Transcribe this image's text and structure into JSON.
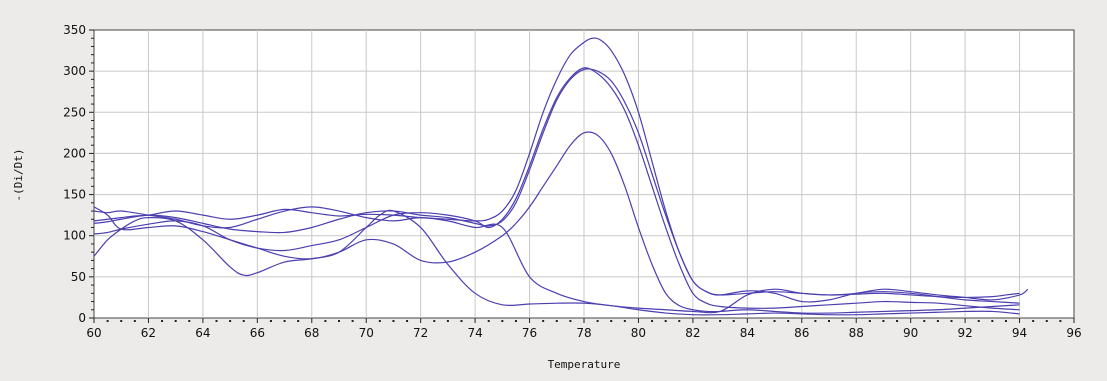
{
  "chart_data": {
    "type": "line",
    "title": "",
    "xlabel": "Temperature",
    "ylabel": "-(Di/Dt)",
    "xlim": [
      60,
      96
    ],
    "ylim": [
      0,
      350
    ],
    "xticks": [
      60,
      62,
      64,
      66,
      68,
      70,
      72,
      74,
      76,
      78,
      80,
      82,
      84,
      86,
      88,
      90,
      92,
      94,
      96
    ],
    "yticks": [
      0,
      50,
      100,
      150,
      200,
      250,
      300,
      350
    ],
    "grid": true,
    "legend": "none",
    "line_color": "#4b3fb0",
    "series": [
      {
        "x": [
          60.0,
          60.5,
          61.0,
          61.5,
          62.0,
          63.0,
          64.0,
          65.0,
          66.0,
          67.0,
          68.0,
          69.0,
          70.0,
          71.0,
          72.0,
          73.0,
          74.0,
          74.5,
          75.0,
          75.5,
          76.0,
          76.5,
          77.0,
          77.5,
          78.0,
          78.3,
          78.6,
          79.0,
          79.5,
          80.0,
          80.5,
          81.0,
          81.5,
          82.0,
          82.5,
          83.0,
          84.0,
          85.0,
          86.0,
          87.0,
          88.0,
          89.0,
          90.0,
          91.0,
          92.0,
          93.0,
          93.5,
          94.0
        ],
        "y": [
          118,
          120,
          122,
          124,
          125,
          130,
          125,
          120,
          125,
          132,
          128,
          124,
          126,
          125,
          122,
          120,
          118,
          120,
          130,
          155,
          200,
          250,
          290,
          320,
          335,
          340,
          338,
          325,
          295,
          250,
          190,
          130,
          80,
          45,
          32,
          28,
          30,
          32,
          30,
          28,
          29,
          30,
          28,
          26,
          25,
          26,
          28,
          30
        ]
      },
      {
        "x": [
          60.0,
          60.5,
          61.0,
          62.0,
          63.0,
          64.0,
          65.0,
          66.0,
          67.0,
          68.0,
          69.0,
          70.0,
          71.0,
          72.0,
          73.0,
          74.0,
          74.5,
          75.0,
          75.5,
          76.0,
          76.5,
          77.0,
          77.5,
          78.0,
          78.5,
          79.0,
          79.5,
          80.0,
          80.5,
          81.0,
          81.5,
          82.0,
          82.5,
          83.0,
          84.0,
          85.0,
          86.0,
          87.0,
          88.0,
          89.0,
          90.0,
          91.0,
          92.0,
          93.0,
          94.0
        ],
        "y": [
          115,
          117,
          120,
          125,
          122,
          115,
          108,
          105,
          104,
          110,
          120,
          128,
          130,
          125,
          122,
          115,
          112,
          118,
          140,
          180,
          225,
          265,
          290,
          302,
          300,
          288,
          262,
          225,
          175,
          125,
          80,
          45,
          32,
          28,
          33,
          30,
          20,
          22,
          30,
          32,
          30,
          26,
          22,
          20,
          18
        ]
      },
      {
        "x": [
          60.0,
          60.5,
          61.0,
          62.0,
          63.0,
          64.0,
          65.0,
          66.0,
          67.0,
          68.0,
          69.0,
          70.0,
          71.0,
          72.0,
          73.0,
          74.0,
          74.5,
          75.0,
          75.5,
          76.0,
          76.5,
          77.0,
          77.5,
          78.0,
          78.5,
          79.0,
          79.5,
          80.0,
          80.5,
          81.0,
          81.5,
          82.0,
          82.5,
          83.0,
          84.0,
          85.0,
          86.0,
          87.0,
          88.0,
          89.0,
          90.0,
          91.0,
          92.0,
          93.0,
          94.0
        ],
        "y": [
          102,
          104,
          108,
          114,
          118,
          112,
          95,
          85,
          82,
          88,
          95,
          110,
          125,
          128,
          125,
          118,
          110,
          120,
          145,
          185,
          230,
          268,
          292,
          304,
          297,
          280,
          252,
          210,
          160,
          110,
          65,
          30,
          18,
          14,
          12,
          12,
          14,
          16,
          18,
          20,
          19,
          18,
          15,
          12,
          10
        ]
      },
      {
        "x": [
          60.0,
          60.5,
          61.0,
          62.0,
          63.0,
          64.0,
          65.0,
          66.0,
          67.0,
          68.0,
          69.0,
          70.0,
          71.0,
          72.0,
          73.0,
          74.0,
          75.0,
          75.5,
          76.0,
          76.5,
          77.0,
          77.5,
          78.0,
          78.5,
          79.0,
          79.5,
          80.0,
          80.5,
          81.0,
          81.5,
          82.0,
          82.5,
          83.0,
          84.0,
          85.0,
          86.0,
          87.0,
          88.0,
          89.0,
          90.0,
          91.0,
          92.0,
          93.0,
          94.0
        ],
        "y": [
          135,
          125,
          108,
          110,
          112,
          105,
          95,
          85,
          75,
          72,
          80,
          95,
          90,
          70,
          68,
          80,
          100,
          115,
          135,
          160,
          185,
          210,
          225,
          222,
          200,
          160,
          110,
          65,
          30,
          15,
          10,
          8,
          8,
          10,
          8,
          6,
          6,
          7,
          8,
          9,
          10,
          12,
          14,
          16
        ]
      },
      {
        "x": [
          60.0,
          60.5,
          61.0,
          61.5,
          62.0,
          63.0,
          64.0,
          65.0,
          65.5,
          66.0,
          67.0,
          68.0,
          69.0,
          70.0,
          70.5,
          71.0,
          72.0,
          73.0,
          74.0,
          75.0,
          76.0,
          77.0,
          78.0,
          79.0,
          80.0,
          81.0,
          82.0,
          83.0,
          84.0,
          85.0,
          86.0,
          87.0,
          88.0,
          89.0,
          90.0,
          91.0,
          92.0,
          93.0,
          94.0
        ],
        "y": [
          75,
          95,
          108,
          118,
          122,
          118,
          95,
          62,
          52,
          55,
          68,
          72,
          80,
          110,
          125,
          130,
          110,
          65,
          30,
          16,
          17,
          18,
          18,
          15,
          10,
          6,
          4,
          4,
          5,
          6,
          5,
          4,
          4,
          5,
          6,
          7,
          8,
          8,
          5
        ]
      },
      {
        "x": [
          60.0,
          60.5,
          61.0,
          62.0,
          63.0,
          64.0,
          65.0,
          66.0,
          67.0,
          68.0,
          69.0,
          70.0,
          71.0,
          72.0,
          73.0,
          74.0,
          75.0,
          76.0,
          77.0,
          78.0,
          79.0,
          80.0,
          81.0,
          82.0,
          83.0,
          84.0,
          85.0,
          86.0,
          87.0,
          88.0,
          89.0,
          90.0,
          91.0,
          92.0,
          93.0,
          94.0,
          94.3
        ],
        "y": [
          130,
          128,
          130,
          125,
          120,
          112,
          110,
          120,
          130,
          135,
          130,
          122,
          118,
          122,
          118,
          110,
          110,
          50,
          30,
          20,
          15,
          12,
          10,
          8,
          8,
          28,
          35,
          30,
          28,
          30,
          35,
          32,
          28,
          25,
          22,
          28,
          35
        ]
      }
    ]
  }
}
